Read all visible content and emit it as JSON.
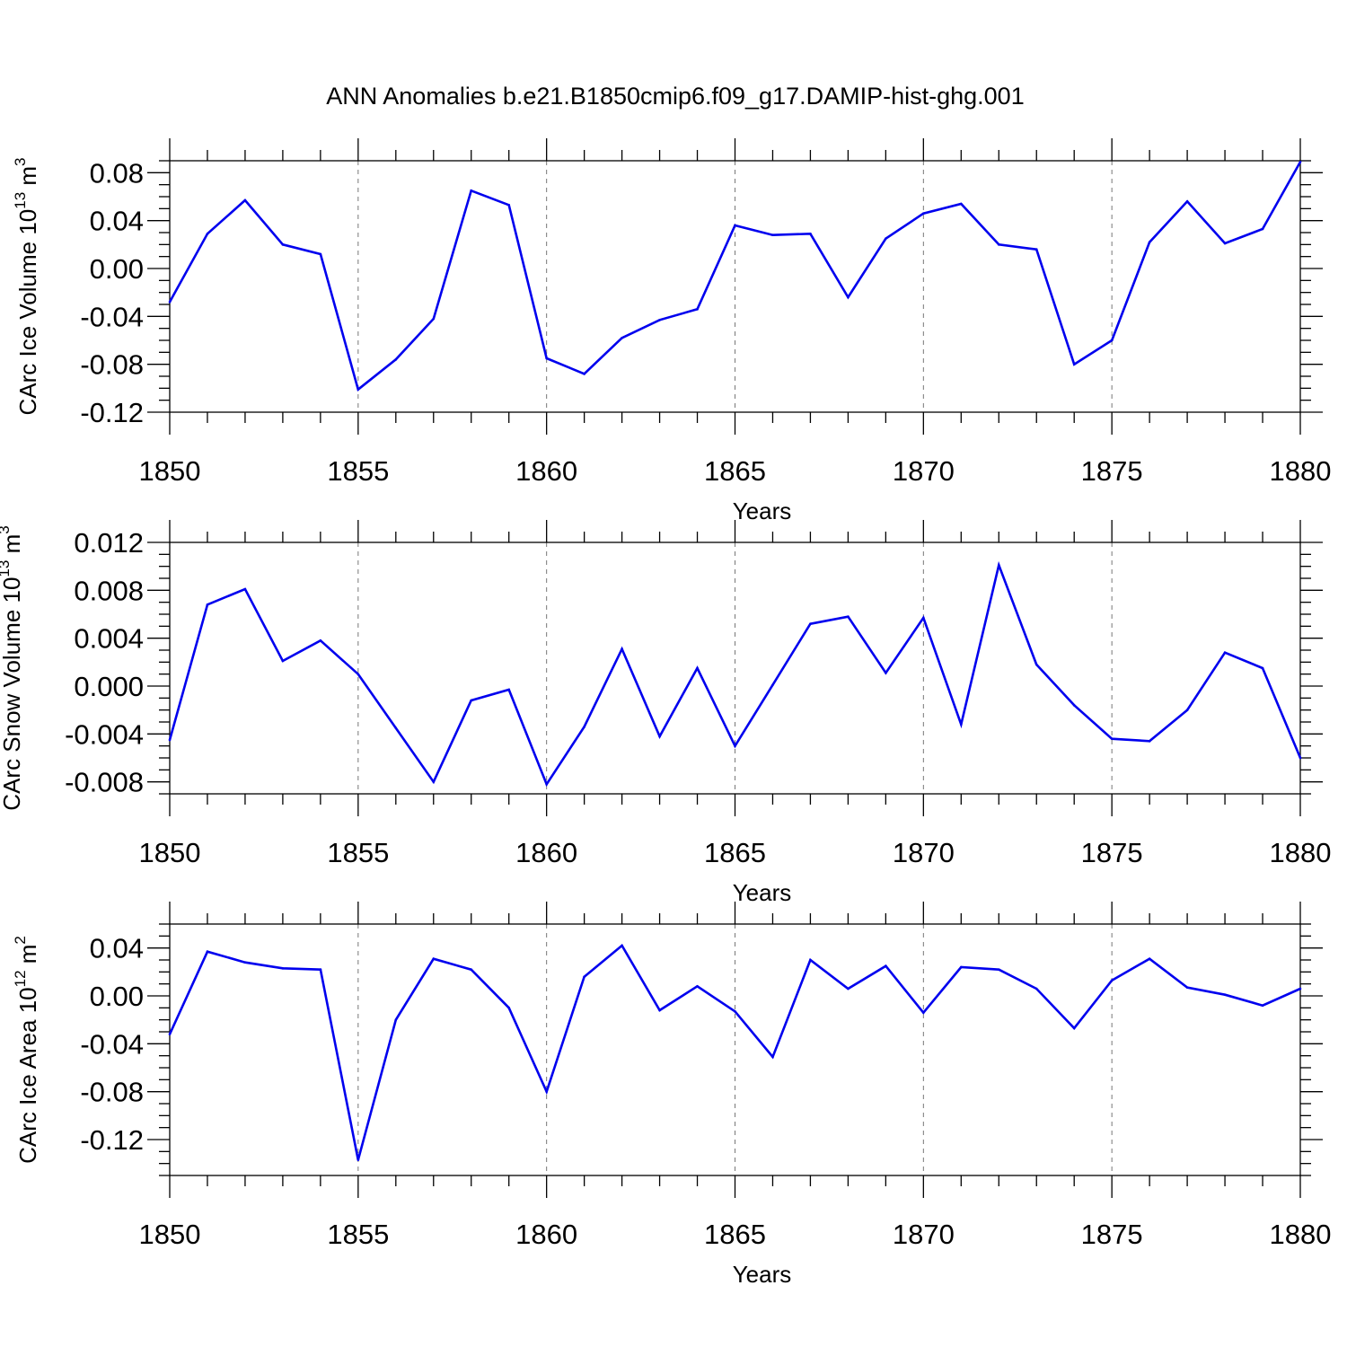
{
  "title": "ANN Anomalies b.e21.B1850cmip6.f09_g17.DAMIP-hist-ghg.001",
  "chart_data": [
    {
      "type": "line",
      "ylabel": {
        "base": "CArc Ice Volume 10",
        "exp": "13",
        "unit": " m",
        "unit_exp": "3"
      },
      "xlabel": "Years",
      "xlim": [
        1850,
        1880
      ],
      "ylim": [
        -0.12,
        0.09
      ],
      "yticks": [
        "0.08",
        "0.04",
        "0.00",
        "-0.04",
        "-0.08",
        "-0.12"
      ],
      "ytick_values": [
        0.08,
        0.04,
        0.0,
        -0.04,
        -0.08,
        -0.12
      ],
      "xticks": [
        "1850",
        "1855",
        "1860",
        "1865",
        "1870",
        "1875",
        "1880"
      ],
      "xtick_values": [
        1850,
        1855,
        1860,
        1865,
        1870,
        1875,
        1880
      ],
      "grid": "vertical dashed at major x ticks",
      "color": "#0000ee",
      "x": [
        1850,
        1851,
        1852,
        1853,
        1854,
        1855,
        1856,
        1857,
        1858,
        1859,
        1860,
        1861,
        1862,
        1863,
        1864,
        1865,
        1866,
        1867,
        1868,
        1869,
        1870,
        1871,
        1872,
        1873,
        1874,
        1875,
        1876,
        1877,
        1878,
        1879,
        1880
      ],
      "y": [
        -0.028,
        0.029,
        0.057,
        0.02,
        0.012,
        -0.101,
        -0.076,
        -0.042,
        0.065,
        0.053,
        -0.075,
        -0.088,
        -0.058,
        -0.043,
        -0.034,
        0.036,
        0.028,
        0.029,
        -0.024,
        0.025,
        0.046,
        0.054,
        0.02,
        0.016,
        -0.08,
        -0.06,
        0.022,
        0.056,
        0.021,
        0.033,
        0.089
      ]
    },
    {
      "type": "line",
      "ylabel": {
        "base": "CArc Snow Volume 10",
        "exp": "13",
        "unit": " m",
        "unit_exp": "3"
      },
      "xlabel": "Years",
      "xlim": [
        1850,
        1880
      ],
      "ylim": [
        -0.009,
        0.012
      ],
      "yticks": [
        "0.012",
        "0.008",
        "0.004",
        "0.000",
        "-0.004",
        "-0.008"
      ],
      "ytick_values": [
        0.012,
        0.008,
        0.004,
        0.0,
        -0.004,
        -0.008
      ],
      "xticks": [
        "1850",
        "1855",
        "1860",
        "1865",
        "1870",
        "1875",
        "1880"
      ],
      "xtick_values": [
        1850,
        1855,
        1860,
        1865,
        1870,
        1875,
        1880
      ],
      "grid": "vertical dashed at major x ticks",
      "color": "#0000ee",
      "x": [
        1850,
        1851,
        1852,
        1853,
        1854,
        1855,
        1856,
        1857,
        1858,
        1859,
        1860,
        1861,
        1862,
        1863,
        1864,
        1865,
        1866,
        1867,
        1868,
        1869,
        1870,
        1871,
        1872,
        1873,
        1874,
        1875,
        1876,
        1877,
        1878,
        1879,
        1880
      ],
      "y": [
        -0.0045,
        0.0068,
        0.0081,
        0.0021,
        0.0038,
        0.001,
        -0.0035,
        -0.008,
        -0.0012,
        -0.0003,
        -0.0082,
        -0.0034,
        0.0031,
        -0.0042,
        0.0015,
        -0.005,
        0.0001,
        0.0052,
        0.0058,
        0.0011,
        0.0057,
        -0.0032,
        0.0101,
        0.0018,
        -0.0016,
        -0.0044,
        -0.0046,
        -0.002,
        0.0028,
        0.0015,
        -0.006
      ]
    },
    {
      "type": "line",
      "ylabel": {
        "base": "CArc Ice Area 10",
        "exp": "12",
        "unit": " m",
        "unit_exp": "2"
      },
      "xlabel": "Years",
      "xlim": [
        1850,
        1880
      ],
      "ylim": [
        -0.15,
        0.06
      ],
      "yticks": [
        "0.04",
        "0.00",
        "-0.04",
        "-0.08",
        "-0.12"
      ],
      "ytick_values": [
        0.04,
        0.0,
        -0.04,
        -0.08,
        -0.12
      ],
      "xticks": [
        "1850",
        "1855",
        "1860",
        "1865",
        "1870",
        "1875",
        "1880"
      ],
      "xtick_values": [
        1850,
        1855,
        1860,
        1865,
        1870,
        1875,
        1880
      ],
      "grid": "vertical dashed at major x ticks",
      "color": "#0000ee",
      "x": [
        1850,
        1851,
        1852,
        1853,
        1854,
        1855,
        1856,
        1857,
        1858,
        1859,
        1860,
        1861,
        1862,
        1863,
        1864,
        1865,
        1866,
        1867,
        1868,
        1869,
        1870,
        1871,
        1872,
        1873,
        1874,
        1875,
        1876,
        1877,
        1878,
        1879,
        1880
      ],
      "y": [
        -0.032,
        0.037,
        0.028,
        0.023,
        0.022,
        -0.137,
        -0.02,
        0.031,
        0.022,
        -0.01,
        -0.08,
        0.016,
        0.042,
        -0.012,
        0.008,
        -0.013,
        -0.051,
        0.03,
        0.006,
        0.025,
        -0.014,
        0.024,
        0.022,
        0.006,
        -0.027,
        0.013,
        0.031,
        0.007,
        0.001,
        -0.008,
        0.006
      ]
    }
  ]
}
